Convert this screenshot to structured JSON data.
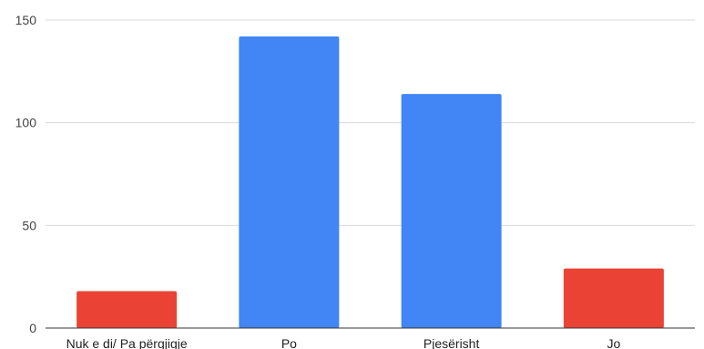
{
  "chart_data": {
    "type": "bar",
    "title": "",
    "xlabel": "",
    "ylabel": "",
    "categories": [
      "Nuk e di/ Pa përgjigje",
      "Po",
      "Pjesërisht",
      "Jo"
    ],
    "values": [
      18,
      142,
      114,
      29
    ],
    "bar_colors": [
      "#ea4335",
      "#4285f4",
      "#4285f4",
      "#ea4335"
    ],
    "ylim": [
      0,
      150
    ],
    "yticks": [
      0,
      50,
      100,
      150
    ],
    "grid": true,
    "legend": "none"
  }
}
